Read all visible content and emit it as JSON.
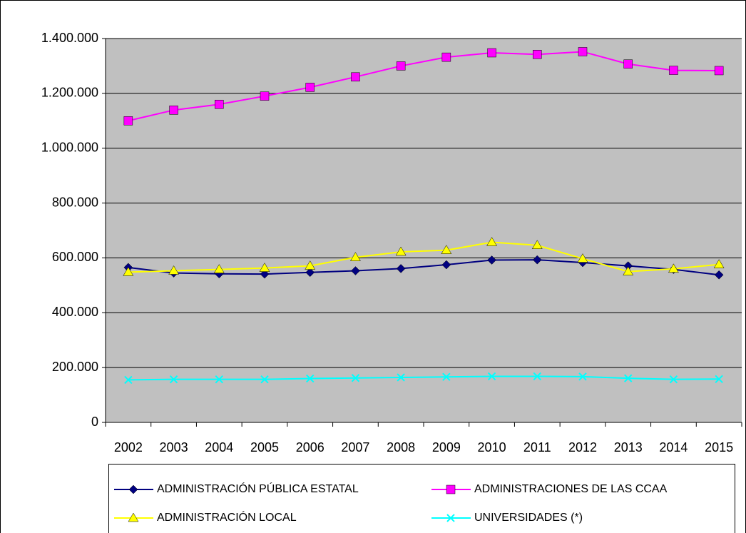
{
  "chart_data": {
    "type": "line",
    "categories": [
      "2002",
      "2003",
      "2004",
      "2005",
      "2006",
      "2007",
      "2008",
      "2009",
      "2010",
      "2011",
      "2012",
      "2013",
      "2014",
      "2015"
    ],
    "series": [
      {
        "name": "ADMINISTRACIÓN PÚBLICA ESTATAL",
        "color": "#000080",
        "marker": "diamond",
        "values": [
          565000,
          545000,
          542000,
          541000,
          547000,
          553000,
          561000,
          575000,
          592000,
          593000,
          583000,
          571000,
          558000,
          538000
        ]
      },
      {
        "name": "ADMINISTRACIONES DE LAS CCAA",
        "color": "#ff00ff",
        "marker": "square",
        "values": [
          1100000,
          1139000,
          1160000,
          1190000,
          1222000,
          1260000,
          1300000,
          1332000,
          1348000,
          1342000,
          1352000,
          1307000,
          1284000,
          1283000
        ]
      },
      {
        "name": "ADMINISTRACIÓN LOCAL",
        "color": "#ffff00",
        "marker": "triangle",
        "values": [
          548000,
          553000,
          558000,
          563000,
          571000,
          602000,
          622000,
          628000,
          657000,
          646000,
          597000,
          550000,
          560000,
          576000
        ]
      },
      {
        "name": "UNIVERSIDADES (*)",
        "color": "#00ffff",
        "marker": "x",
        "values": [
          155000,
          157000,
          157000,
          157000,
          160000,
          162000,
          164000,
          166000,
          168000,
          168000,
          167000,
          161000,
          157000,
          158000
        ]
      }
    ],
    "ylim": [
      0,
      1400000
    ],
    "yticks": [
      0,
      {
        "value": 200000,
        "label": "200.000"
      },
      {
        "value": 400000,
        "label": "400.000"
      },
      {
        "value": 600000,
        "label": "600.000"
      },
      {
        "value": 800000,
        "label": "800.000"
      },
      {
        "value": 1000000,
        "label": "1.000.000"
      },
      {
        "value": 1200000,
        "label": "1.200.000"
      },
      {
        "value": 1400000,
        "label": "1.400.000"
      }
    ],
    "grid": true,
    "legend": "bottom"
  }
}
